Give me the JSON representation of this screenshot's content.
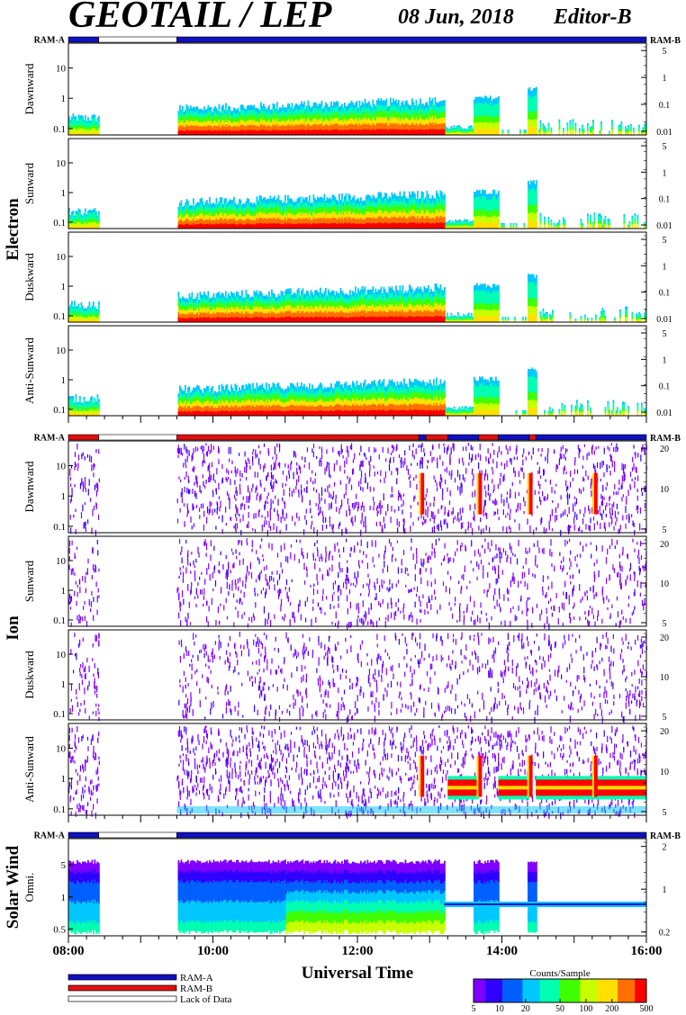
{
  "header": {
    "title": "GEOTAIL / LEP",
    "date": "08 Jun, 2018",
    "editor": "Editor-B"
  },
  "colors": {
    "ram_a": "#1010c0",
    "ram_b": "#e01010",
    "lack": "#ffffff",
    "scale": [
      "#7f00ff",
      "#3000ff",
      "#0060ff",
      "#00c8ff",
      "#00ffb0",
      "#40ff00",
      "#c8ff00",
      "#ffe000",
      "#ff7000",
      "#ff0000"
    ]
  },
  "chart_data": {
    "type": "heatmap",
    "xlabel": "Universal Time",
    "x_ticks": [
      "08:00",
      "10:00",
      "12:00",
      "14:00",
      "16:00"
    ],
    "x_range_hours": [
      8,
      16
    ],
    "ram_labels": {
      "left": "RAM-A",
      "right": "RAM-B"
    },
    "groups": [
      {
        "name": "Electron",
        "panels": [
          {
            "name": "Dawnward",
            "left_ticks": [
              "10",
              "1",
              "0.1"
            ],
            "right_ticks": [
              "5",
              "1",
              "0.1",
              "0.01"
            ]
          },
          {
            "name": "Sunward",
            "left_ticks": [
              "10",
              "1",
              "0.1"
            ],
            "right_ticks": [
              "5",
              "1",
              "0.1",
              "0.01"
            ]
          },
          {
            "name": "Duskward",
            "left_ticks": [
              "10",
              "1",
              "0.1"
            ],
            "right_ticks": [
              "5",
              "1",
              "0.1",
              "0.01"
            ]
          },
          {
            "name": "Anti-Sunward",
            "left_ticks": [
              "10",
              "1",
              "0.1"
            ],
            "right_ticks": [
              "5",
              "1",
              "0.1",
              "0.01"
            ]
          }
        ],
        "ram_segments": [
          {
            "start": 8.0,
            "end": 8.42,
            "state": "ram_a"
          },
          {
            "start": 8.42,
            "end": 9.5,
            "state": "lack"
          },
          {
            "start": 9.5,
            "end": 16.0,
            "state": "ram_a"
          }
        ]
      },
      {
        "name": "Ion",
        "panels": [
          {
            "name": "Dawnward",
            "left_ticks": [
              "10",
              "1",
              "0.1"
            ],
            "right_ticks": [
              "20",
              "10",
              "5"
            ]
          },
          {
            "name": "Sunward",
            "left_ticks": [
              "10",
              "1",
              "0.1"
            ],
            "right_ticks": [
              "20",
              "10",
              "5"
            ]
          },
          {
            "name": "Duskward",
            "left_ticks": [
              "10",
              "1",
              "0.1"
            ],
            "right_ticks": [
              "20",
              "10",
              "5"
            ]
          },
          {
            "name": "Anti-Sunward",
            "left_ticks": [
              "10",
              "1",
              "0.1"
            ],
            "right_ticks": [
              "20",
              "10",
              "5"
            ]
          }
        ],
        "ram_segments": [
          {
            "start": 8.0,
            "end": 8.42,
            "state": "ram_b"
          },
          {
            "start": 8.42,
            "end": 9.5,
            "state": "lack"
          },
          {
            "start": 9.5,
            "end": 12.85,
            "state": "ram_b"
          },
          {
            "start": 12.85,
            "end": 12.95,
            "state": "ram_a"
          },
          {
            "start": 12.95,
            "end": 13.25,
            "state": "ram_b"
          },
          {
            "start": 13.25,
            "end": 13.68,
            "state": "ram_a"
          },
          {
            "start": 13.68,
            "end": 13.95,
            "state": "ram_b"
          },
          {
            "start": 13.95,
            "end": 14.38,
            "state": "ram_a"
          },
          {
            "start": 14.38,
            "end": 14.47,
            "state": "ram_b"
          },
          {
            "start": 14.47,
            "end": 16.0,
            "state": "ram_a"
          }
        ]
      },
      {
        "name": "Solar Wind",
        "panels": [
          {
            "name": "Omni.",
            "left_ticks": [
              "5",
              "1",
              "0.5"
            ],
            "right_ticks": [
              "2",
              "1",
              "0.2"
            ]
          }
        ],
        "ram_segments": [
          {
            "start": 8.0,
            "end": 8.42,
            "state": "ram_a"
          },
          {
            "start": 8.42,
            "end": 9.5,
            "state": "lack"
          },
          {
            "start": 9.5,
            "end": 16.0,
            "state": "ram_a"
          }
        ]
      }
    ],
    "legend": [
      {
        "label": "RAM-A",
        "state": "ram_a"
      },
      {
        "label": "RAM-B",
        "state": "ram_b"
      },
      {
        "label": "Lack of Data",
        "state": "lack"
      }
    ],
    "colorbar": {
      "title": "Counts/Sample",
      "ticks": [
        "5",
        "10",
        "20",
        "50",
        "100",
        "200",
        "500"
      ],
      "range": [
        5,
        500
      ],
      "scale": "log"
    },
    "data_gaps_hours": [
      [
        8.42,
        9.5
      ]
    ],
    "event_bursts_hours": [
      12.9,
      13.7,
      14.4,
      15.3
    ]
  }
}
